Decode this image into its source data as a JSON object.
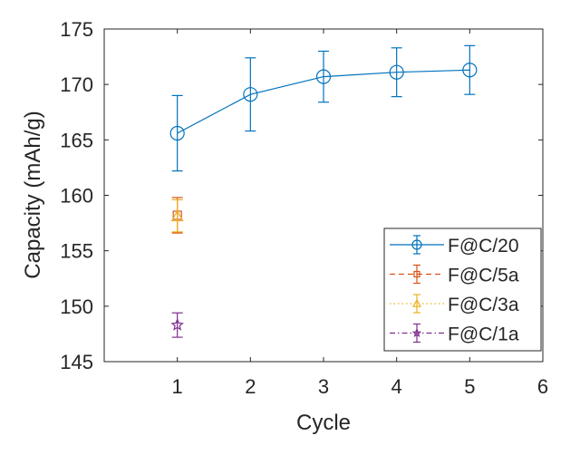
{
  "chart_data": {
    "type": "line",
    "title": "",
    "xlabel": "Cycle",
    "ylabel": "Capacity (mAh/g)",
    "xlim": [
      0,
      6
    ],
    "ylim": [
      145,
      175
    ],
    "xticks": [
      1,
      2,
      3,
      4,
      5,
      6
    ],
    "yticks": [
      145,
      150,
      155,
      160,
      165,
      170,
      175
    ],
    "grid": false,
    "legend_position": "bottom-right",
    "series": [
      {
        "name": "F@C/20",
        "color": "#0072BD",
        "marker": "circle",
        "line": "solid",
        "x": [
          1,
          2,
          3,
          4,
          5
        ],
        "y": [
          165.6,
          169.1,
          170.7,
          171.1,
          171.3
        ],
        "err_low": [
          162.2,
          165.8,
          168.4,
          168.9,
          169.1
        ],
        "err_high": [
          169.0,
          172.4,
          173.0,
          173.3,
          173.5
        ]
      },
      {
        "name": "F@C/5a",
        "color": "#D95319",
        "marker": "square",
        "line": "dashed",
        "x": [
          1
        ],
        "y": [
          158.2
        ],
        "err_low": [
          156.6
        ],
        "err_high": [
          159.8
        ]
      },
      {
        "name": "F@C/3a",
        "color": "#EDB120",
        "marker": "triangle",
        "line": "dotted",
        "x": [
          1
        ],
        "y": [
          158.1
        ],
        "err_low": [
          156.7
        ],
        "err_high": [
          159.6
        ]
      },
      {
        "name": "F@C/1a",
        "color": "#7E2F8E",
        "marker": "star",
        "line": "dashdot",
        "x": [
          1
        ],
        "y": [
          148.3
        ],
        "err_low": [
          147.2
        ],
        "err_high": [
          149.4
        ]
      }
    ]
  }
}
